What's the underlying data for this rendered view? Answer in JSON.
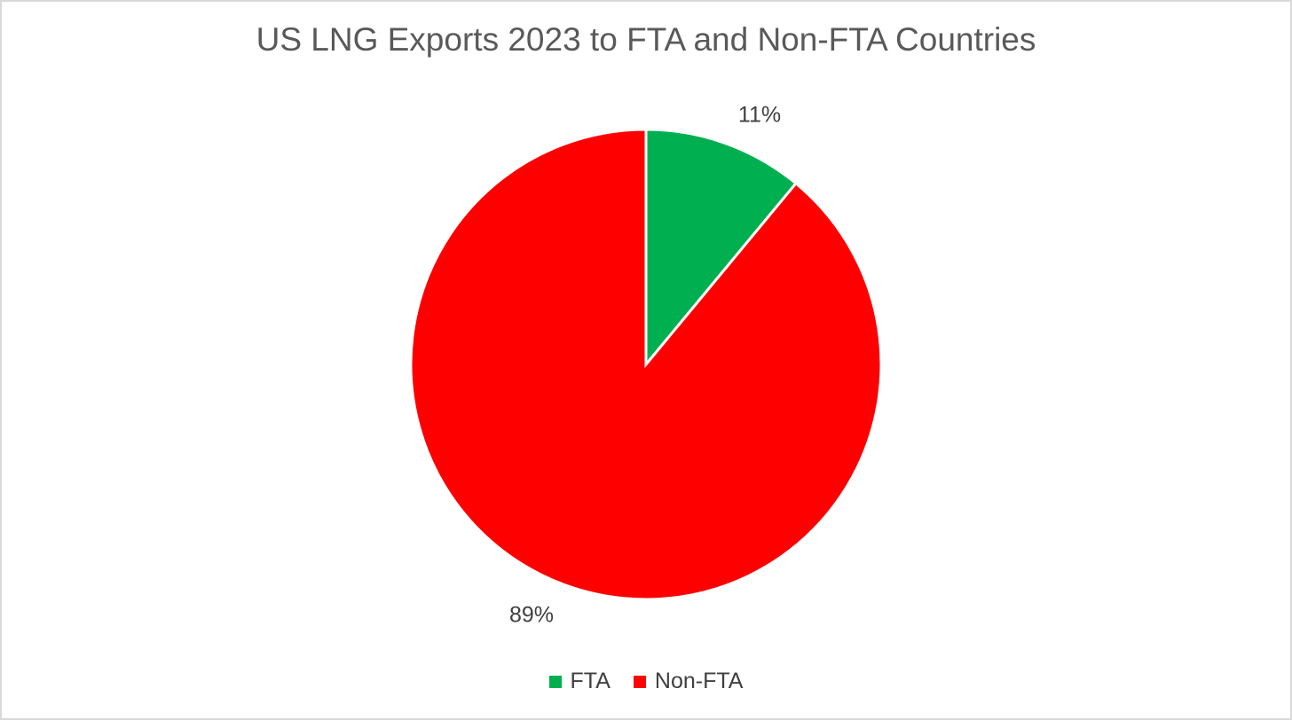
{
  "chart_data": {
    "type": "pie",
    "title": "US LNG Exports 2023 to FTA and Non-FTA Countries",
    "categories": [
      "FTA",
      "Non-FTA"
    ],
    "values": [
      11,
      89
    ],
    "labels": [
      "11%",
      "89%"
    ],
    "colors": [
      "#00b050",
      "#ff0000"
    ],
    "legend_position": "bottom"
  }
}
